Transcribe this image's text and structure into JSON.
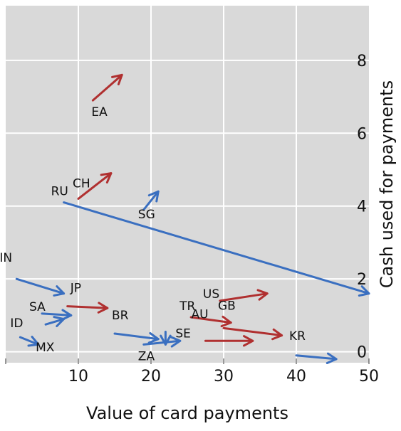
{
  "chart_data": {
    "type": "arrow-scatter",
    "xlabel": "Value of card payments",
    "ylabel": "Cash used for payments",
    "xlim": [
      0,
      50
    ],
    "ylim": [
      -0.3,
      9.5
    ],
    "x_ticks": [
      10,
      20,
      30,
      40,
      50
    ],
    "y_ticks": [
      0,
      2,
      4,
      6,
      8
    ],
    "grid": true,
    "y_axis_side": "right",
    "colors": {
      "increase": "#B03030",
      "decrease": "#3A6FC0",
      "panel": "#D9D9D9",
      "grid": "#FFFFFF"
    },
    "arrows": [
      {
        "label": "EA",
        "x0": 12.0,
        "y0": 6.9,
        "x1": 16.0,
        "y1": 7.6,
        "color": "increase"
      },
      {
        "label": "CH",
        "x0": 10.0,
        "y0": 4.2,
        "x1": 14.5,
        "y1": 4.9,
        "color": "increase"
      },
      {
        "label": "SG",
        "x0": 19.0,
        "y0": 3.9,
        "x1": 21.0,
        "y1": 4.4,
        "color": "decrease"
      },
      {
        "label": "RU",
        "x0": 8.0,
        "y0": 4.1,
        "x1": 50.0,
        "y1": 1.6,
        "color": "decrease"
      },
      {
        "label": "IN",
        "x0": 1.5,
        "y0": 2.0,
        "x1": 8.0,
        "y1": 1.6,
        "color": "decrease"
      },
      {
        "label": "JP",
        "x0": 8.5,
        "y0": 1.25,
        "x1": 14.0,
        "y1": 1.2,
        "color": "increase"
      },
      {
        "label": "SA",
        "x0": 5.0,
        "y0": 1.05,
        "x1": 9.0,
        "y1": 1.0,
        "color": "decrease"
      },
      {
        "label": "MX",
        "x0": 5.5,
        "y0": 0.75,
        "x1": 8.0,
        "y1": 0.9,
        "color": "decrease"
      },
      {
        "label": "ID",
        "x0": 2.0,
        "y0": 0.4,
        "x1": 4.5,
        "y1": 0.2,
        "color": "decrease"
      },
      {
        "label": "BR",
        "x0": 15.0,
        "y0": 0.5,
        "x1": 21.0,
        "y1": 0.35,
        "color": "decrease"
      },
      {
        "label": "ZA",
        "x0": 19.0,
        "y0": 0.2,
        "x1": 24.0,
        "y1": 0.3,
        "color": "decrease"
      },
      {
        "label": "SE",
        "x0": 22.0,
        "y0": 0.55,
        "x1": 22.0,
        "y1": 0.2,
        "color": "decrease"
      },
      {
        "label": "TR",
        "x0": 25.5,
        "y0": 0.95,
        "x1": 31.0,
        "y1": 0.8,
        "color": "increase"
      },
      {
        "label": "US",
        "x0": 29.5,
        "y0": 1.4,
        "x1": 36.0,
        "y1": 1.6,
        "color": "increase"
      },
      {
        "label": "AU",
        "x0": 27.5,
        "y0": 0.3,
        "x1": 34.0,
        "y1": 0.3,
        "color": "increase"
      },
      {
        "label": "GB",
        "x0": 30.0,
        "y0": 0.65,
        "x1": 38.0,
        "y1": 0.45,
        "color": "increase"
      },
      {
        "label": "KR",
        "x0": 40.0,
        "y0": -0.1,
        "x1": 45.5,
        "y1": -0.2,
        "color": "decrease"
      }
    ]
  }
}
